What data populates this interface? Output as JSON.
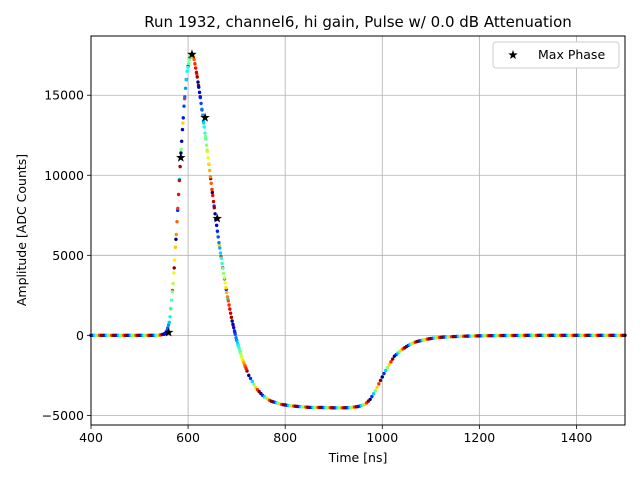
{
  "chart_data": {
    "type": "scatter",
    "title": "Run 1932, channel6, hi gain, Pulse w/ 0.0 dB Attenuation",
    "xlabel": "Time [ns]",
    "ylabel": "Amplitude [ADC Counts]",
    "xlim": [
      400,
      1500
    ],
    "ylim": [
      -5600,
      18700
    ],
    "xticks": [
      400,
      600,
      800,
      1000,
      1200,
      1400
    ],
    "yticks": [
      -5000,
      0,
      5000,
      10000,
      15000
    ],
    "ytick_labels": [
      "−5000",
      "0",
      "5000",
      "10000",
      "15000"
    ],
    "grid": true,
    "legend": {
      "placement": "top-right",
      "entries": [
        {
          "label": "Max Phase",
          "marker": "star",
          "color": "#000000"
        }
      ]
    },
    "colormap": "jet",
    "pulse": {
      "x": [
        400,
        420,
        440,
        460,
        480,
        500,
        520,
        540,
        555,
        562,
        570,
        578,
        585,
        592,
        598,
        604,
        608,
        612,
        618,
        625,
        632,
        640,
        648,
        656,
        664,
        672,
        680,
        690,
        700,
        712,
        725,
        740,
        755,
        770,
        790,
        810,
        830,
        850,
        870,
        890,
        910,
        930,
        950,
        965,
        975,
        985,
        995,
        1005,
        1015,
        1025,
        1040,
        1055,
        1070,
        1090,
        1110,
        1130,
        1160,
        1200,
        1250,
        1300,
        1350,
        1400,
        1450,
        1500
      ],
      "y": [
        0,
        0,
        0,
        0,
        0,
        0,
        0,
        0,
        120,
        900,
        3500,
        7500,
        11300,
        14500,
        16500,
        17400,
        17600,
        17300,
        16300,
        14900,
        13300,
        11400,
        9400,
        7500,
        5700,
        4100,
        2600,
        1000,
        -300,
        -1500,
        -2500,
        -3300,
        -3800,
        -4100,
        -4300,
        -4400,
        -4450,
        -4500,
        -4500,
        -4520,
        -4530,
        -4520,
        -4450,
        -4300,
        -4000,
        -3500,
        -2900,
        -2300,
        -1800,
        -1300,
        -900,
        -600,
        -400,
        -250,
        -150,
        -100,
        -60,
        -30,
        -10,
        0,
        0,
        0,
        0,
        0
      ]
    },
    "max_phase": {
      "x": [
        560,
        585,
        608,
        635,
        660
      ],
      "y": [
        180,
        11100,
        17550,
        13600,
        7300
      ]
    }
  }
}
